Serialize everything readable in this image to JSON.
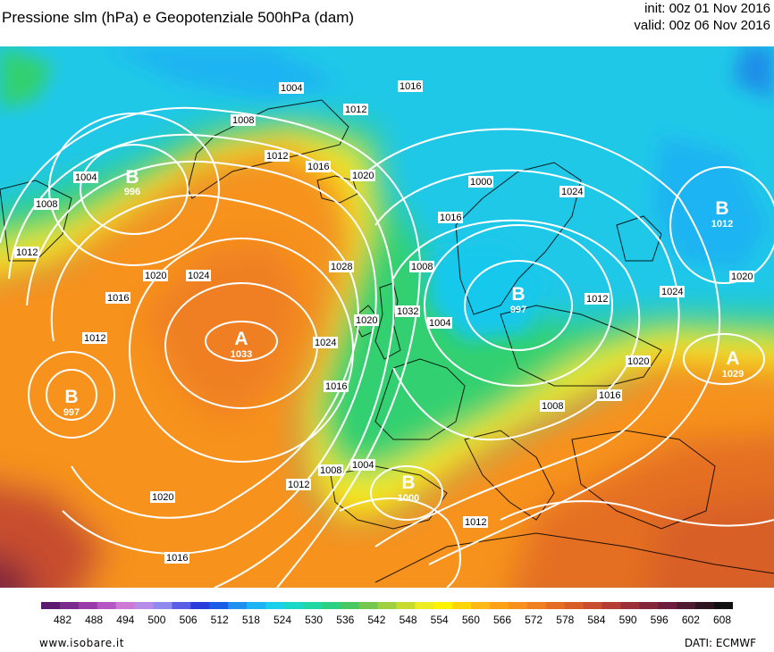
{
  "header": {
    "title": "Pressione slm (hPa) e Geopotenziale 500hPa (dam)",
    "init": "init: 00z 01 Nov 2016",
    "valid": "valid: 00z 06 Nov 2016"
  },
  "map": {
    "pressure_centers": [
      {
        "letter": "B",
        "value": "996"
      },
      {
        "letter": "A",
        "value": "1033"
      },
      {
        "letter": "B",
        "value": "997"
      },
      {
        "letter": "B",
        "value": "997"
      },
      {
        "letter": "B",
        "value": "1000"
      },
      {
        "letter": "B",
        "value": "1012"
      },
      {
        "letter": "A",
        "value": "1029"
      }
    ],
    "isobar_labels": [
      "1004",
      "1008",
      "1012",
      "1016",
      "1020",
      "1024",
      "1028",
      "1032",
      "1000"
    ]
  },
  "colorbar": {
    "ticks": [
      "482",
      "488",
      "494",
      "500",
      "506",
      "512",
      "518",
      "524",
      "530",
      "536",
      "542",
      "548",
      "554",
      "560",
      "566",
      "572",
      "578",
      "584",
      "590",
      "596",
      "602",
      "608"
    ],
    "colors": [
      "#5a1a6e",
      "#7a2a8c",
      "#9a3aa8",
      "#b656c4",
      "#cc7ad6",
      "#b58ce8",
      "#8f8aec",
      "#5a5ee6",
      "#2a3cdc",
      "#1a5ee8",
      "#1f8ff0",
      "#1cb4f2",
      "#19d0ea",
      "#1ad8c8",
      "#20d8a4",
      "#2cd282",
      "#48c862",
      "#74c850",
      "#9ed040",
      "#c8dc30",
      "#ecec20",
      "#fff300",
      "#ffd40a",
      "#ffb914",
      "#ffa218",
      "#f7901c",
      "#ef7f20",
      "#e46e24",
      "#d85e28",
      "#c84e2e",
      "#b43e34",
      "#9c3036",
      "#84263a",
      "#6c1e3c",
      "#4e1a30",
      "#2c1420",
      "#101010"
    ]
  },
  "footer": {
    "site": "www.isobare.it",
    "source": "DATI:  ECMWF"
  }
}
